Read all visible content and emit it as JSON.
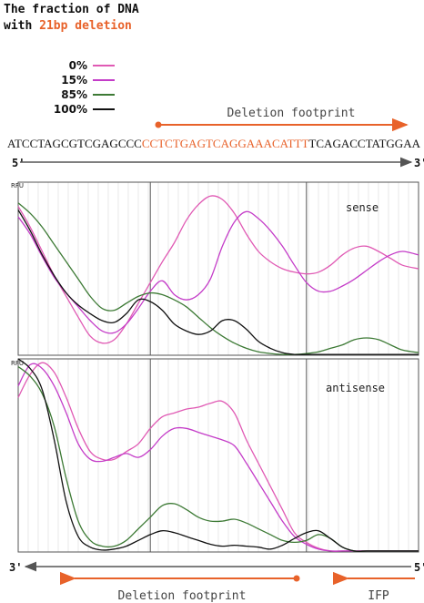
{
  "title": {
    "line1": "The fraction of DNA",
    "line2_prefix": "with ",
    "line2_accent": "21bp deletion"
  },
  "colors": {
    "accent": "#e8622a",
    "c0": "#e05ab4",
    "c15": "#c43cc8",
    "c85": "#3d7a35",
    "c100": "#111111",
    "grid": "#d8d8d8",
    "frame": "#555555"
  },
  "legend": [
    {
      "label": "0%",
      "color": "#e05ab4"
    },
    {
      "label": "15%",
      "color": "#c43cc8"
    },
    {
      "label": "85%",
      "color": "#3d7a35"
    },
    {
      "label": "100%",
      "color": "#111111"
    }
  ],
  "sequence": {
    "left": "ATCCTAGCGTCGAGCCC",
    "deletion": "CCTCTGAGTCAGGAAACATTT",
    "right": "TCAGACCTATGGAA"
  },
  "top_footprint_label": "Deletion footprint",
  "bottom_footprint_label": "Deletion footprint",
  "ifp_label": "IFP",
  "top_axis": {
    "left": "5'",
    "right": "3'"
  },
  "bottom_axis": {
    "left": "3'",
    "right": "5'"
  },
  "chart_data": [
    {
      "type": "line",
      "title": "",
      "annotation": "sense",
      "ylabel": "RFU",
      "xlabel": "",
      "x": [
        0,
        3,
        6,
        9,
        12,
        15,
        18,
        21,
        24,
        27,
        30,
        33,
        36,
        39,
        42,
        45,
        48,
        51,
        54,
        57,
        60,
        63,
        66,
        69,
        72,
        75,
        78,
        81,
        84,
        87,
        90,
        93,
        96,
        100
      ],
      "xlim": [
        0,
        100
      ],
      "ylim": [
        0,
        100
      ],
      "grid": true,
      "series": [
        {
          "name": "0%",
          "color": "#e05ab4",
          "values": [
            86,
            74,
            60,
            46,
            34,
            22,
            11,
            7,
            9,
            18,
            30,
            42,
            54,
            65,
            78,
            87,
            92,
            90,
            82,
            70,
            60,
            54,
            50,
            48,
            47,
            48,
            52,
            58,
            62,
            63,
            60,
            56,
            52,
            50
          ]
        },
        {
          "name": "15%",
          "color": "#c43cc8",
          "values": [
            80,
            70,
            57,
            45,
            36,
            28,
            20,
            14,
            13,
            18,
            27,
            37,
            43,
            35,
            32,
            35,
            44,
            63,
            77,
            83,
            79,
            72,
            63,
            52,
            42,
            37,
            37,
            40,
            44,
            49,
            54,
            58,
            60,
            58
          ]
        },
        {
          "name": "85%",
          "color": "#3d7a35",
          "values": [
            88,
            82,
            74,
            64,
            54,
            44,
            34,
            27,
            26,
            30,
            34,
            36,
            35,
            32,
            28,
            22,
            16,
            11,
            7,
            4,
            2,
            1,
            0.5,
            0.5,
            1,
            2,
            4,
            6,
            9,
            10,
            9,
            6,
            3,
            1.5
          ]
        },
        {
          "name": "100%",
          "color": "#111111",
          "values": [
            84,
            72,
            58,
            46,
            36,
            29,
            24,
            20,
            19,
            24,
            32,
            31,
            26,
            18,
            14,
            12,
            14,
            20,
            20,
            15,
            8,
            4,
            1.5,
            0.5,
            0.5,
            0.5,
            0.5,
            0.5,
            0.5,
            0.5,
            0.5,
            0.5,
            0.5,
            0.5
          ]
        }
      ]
    },
    {
      "type": "line",
      "title": "",
      "annotation": "antisense",
      "ylabel": "RFU",
      "xlabel": "",
      "x": [
        0,
        3,
        6,
        9,
        12,
        15,
        18,
        21,
        24,
        27,
        30,
        33,
        36,
        39,
        42,
        45,
        48,
        51,
        54,
        57,
        60,
        63,
        66,
        69,
        72,
        75,
        78,
        81,
        84,
        87,
        90,
        93,
        96,
        100
      ],
      "xlim": [
        0,
        100
      ],
      "ylim": [
        0,
        100
      ],
      "grid": true,
      "series": [
        {
          "name": "0%",
          "color": "#e05ab4",
          "values": [
            80,
            92,
            98,
            93,
            80,
            64,
            52,
            48,
            48,
            52,
            56,
            64,
            70,
            72,
            74,
            75,
            77,
            78,
            72,
            58,
            46,
            34,
            22,
            10,
            5,
            2,
            0.5,
            0.5,
            0.5,
            0.5,
            0.5,
            0.5,
            0.5,
            0.5
          ]
        },
        {
          "name": "15%",
          "color": "#c43cc8",
          "values": [
            86,
            97,
            95,
            86,
            72,
            56,
            48,
            47,
            49,
            51,
            49,
            53,
            60,
            64,
            64,
            62,
            60,
            58,
            55,
            46,
            36,
            26,
            16,
            8,
            4,
            1.5,
            0.5,
            0.5,
            0.5,
            0.5,
            0.5,
            0.5,
            0.5,
            0.5
          ]
        },
        {
          "name": "85%",
          "color": "#3d7a35",
          "values": [
            96,
            91,
            82,
            65,
            38,
            16,
            6,
            3,
            3,
            6,
            12,
            18,
            24,
            25,
            22,
            18,
            16,
            16,
            17,
            15,
            12,
            9,
            6,
            5,
            6,
            9,
            7,
            2.5,
            0.5,
            0.5,
            0.5,
            0.5,
            0.5,
            0.5
          ]
        },
        {
          "name": "100%",
          "color": "#111111",
          "values": [
            100,
            95,
            84,
            58,
            26,
            8,
            2.5,
            1,
            1.5,
            3,
            6,
            9,
            11,
            10,
            8,
            6,
            4,
            3,
            3.5,
            3,
            2.5,
            1.5,
            3.5,
            7,
            10,
            11,
            7,
            2.5,
            0.5,
            0.5,
            0.5,
            0.5,
            0.5,
            0.5
          ]
        }
      ]
    }
  ]
}
